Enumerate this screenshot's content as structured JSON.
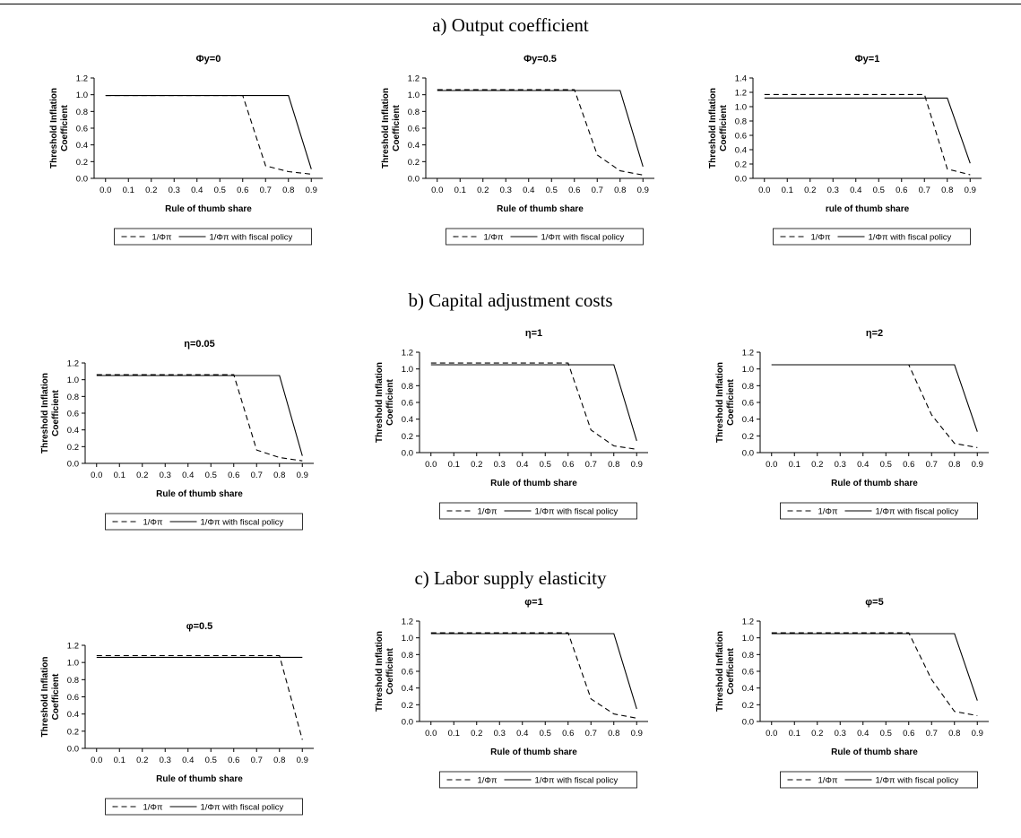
{
  "sections": [
    {
      "title": "a) Output coefficient"
    },
    {
      "title": "b) Capital adjustment costs"
    },
    {
      "title": "c) Labor supply elasticity"
    }
  ],
  "chart_data": [
    {
      "type": "line",
      "title": "Φy=0",
      "xlabel": "Rule of thumb share",
      "ylabel": "Threshold Inflation Coefficient",
      "x": [
        0.0,
        0.1,
        0.2,
        0.3,
        0.4,
        0.5,
        0.6,
        0.7,
        0.8,
        0.9
      ],
      "xticks": [
        "0.0",
        "0.1",
        "0.2",
        "0.3",
        "0.4",
        "0.5",
        "0.6",
        "0.7",
        "0.8",
        "0.9"
      ],
      "ylim": [
        0,
        1.2
      ],
      "yticks": [
        "0.0",
        "0.2",
        "0.4",
        "0.6",
        "0.8",
        "1.0",
        "1.2"
      ],
      "series": [
        {
          "name": "1/Φπ",
          "style": "dashed",
          "values": [
            0.99,
            0.99,
            0.99,
            0.99,
            0.99,
            0.99,
            0.99,
            0.15,
            0.08,
            0.05
          ]
        },
        {
          "name": "1/Φπ with fiscal policy",
          "style": "solid",
          "values": [
            0.99,
            0.99,
            0.99,
            0.99,
            0.99,
            0.99,
            0.99,
            0.99,
            0.99,
            0.11
          ]
        }
      ],
      "legend": "bottom"
    },
    {
      "type": "line",
      "title": "Φy=0.5",
      "xlabel": "Rule of thumb share",
      "ylabel": "Threshold Inflation Coefficient",
      "x": [
        0.0,
        0.1,
        0.2,
        0.3,
        0.4,
        0.5,
        0.6,
        0.7,
        0.8,
        0.9
      ],
      "xticks": [
        "0.0",
        "0.1",
        "0.2",
        "0.3",
        "0.4",
        "0.5",
        "0.6",
        "0.7",
        "0.8",
        "0.9"
      ],
      "ylim": [
        0,
        1.2
      ],
      "yticks": [
        "0.0",
        "0.2",
        "0.4",
        "0.6",
        "0.8",
        "1.0",
        "1.2"
      ],
      "series": [
        {
          "name": "1/Φπ",
          "style": "dashed",
          "values": [
            1.06,
            1.06,
            1.06,
            1.06,
            1.06,
            1.06,
            1.06,
            0.28,
            0.09,
            0.04
          ]
        },
        {
          "name": "1/Φπ with fiscal policy",
          "style": "solid",
          "values": [
            1.05,
            1.05,
            1.05,
            1.05,
            1.05,
            1.05,
            1.05,
            1.05,
            1.05,
            0.14
          ]
        }
      ],
      "legend": "bottom"
    },
    {
      "type": "line",
      "title": "Φy=1",
      "xlabel": "rule of thumb share",
      "ylabel": "Threshold Inflation Coefficient",
      "x": [
        0.0,
        0.1,
        0.2,
        0.3,
        0.4,
        0.5,
        0.6,
        0.7,
        0.8,
        0.9
      ],
      "xticks": [
        "0.0",
        "0.1",
        "0.2",
        "0.3",
        "0.4",
        "0.5",
        "0.6",
        "0.7",
        "0.8",
        "0.9"
      ],
      "ylim": [
        0,
        1.4
      ],
      "yticks": [
        "0.0",
        "0.2",
        "0.4",
        "0.6",
        "0.8",
        "1.0",
        "1.2",
        "1.4"
      ],
      "series": [
        {
          "name": "1/Φπ",
          "style": "dashed",
          "values": [
            1.17,
            1.17,
            1.17,
            1.17,
            1.17,
            1.17,
            1.17,
            1.17,
            0.13,
            0.05
          ]
        },
        {
          "name": "1/Φπ with fiscal policy",
          "style": "solid",
          "values": [
            1.12,
            1.12,
            1.12,
            1.12,
            1.12,
            1.12,
            1.12,
            1.12,
            1.12,
            0.21
          ]
        }
      ],
      "legend": "bottom"
    },
    {
      "type": "line",
      "title": "η=0.05",
      "xlabel": "Rule of thumb share",
      "ylabel": "Threshold Inflation Coefficient",
      "x": [
        0.0,
        0.1,
        0.2,
        0.3,
        0.4,
        0.5,
        0.6,
        0.7,
        0.8,
        0.9
      ],
      "xticks": [
        "0.0",
        "0.1",
        "0.2",
        "0.3",
        "0.4",
        "0.5",
        "0.6",
        "0.7",
        "0.8",
        "0.9"
      ],
      "ylim": [
        0,
        1.2
      ],
      "yticks": [
        "0.0",
        "0.2",
        "0.4",
        "0.6",
        "0.8",
        "1.0",
        "1.2"
      ],
      "series": [
        {
          "name": "1/Φπ",
          "style": "dashed",
          "values": [
            1.06,
            1.06,
            1.06,
            1.06,
            1.06,
            1.06,
            1.06,
            0.16,
            0.07,
            0.03
          ]
        },
        {
          "name": "1/Φπ with fiscal policy",
          "style": "solid",
          "values": [
            1.05,
            1.05,
            1.05,
            1.05,
            1.05,
            1.05,
            1.05,
            1.05,
            1.05,
            0.09
          ]
        }
      ],
      "legend": "bottom"
    },
    {
      "type": "line",
      "title": "η=1",
      "xlabel": "Rule of thumb share",
      "ylabel": "Threshold Inflation Coefficient",
      "x": [
        0.0,
        0.1,
        0.2,
        0.3,
        0.4,
        0.5,
        0.6,
        0.7,
        0.8,
        0.9
      ],
      "xticks": [
        "0.0",
        "0.1",
        "0.2",
        "0.3",
        "0.4",
        "0.5",
        "0.6",
        "0.7",
        "0.8",
        "0.9"
      ],
      "ylim": [
        0,
        1.2
      ],
      "yticks": [
        "0.0",
        "0.2",
        "0.4",
        "0.6",
        "0.8",
        "1.0",
        "1.2"
      ],
      "series": [
        {
          "name": "1/Φπ",
          "style": "dashed",
          "values": [
            1.07,
            1.07,
            1.07,
            1.07,
            1.07,
            1.07,
            1.07,
            0.27,
            0.08,
            0.04
          ]
        },
        {
          "name": "1/Φπ with fiscal policy",
          "style": "solid",
          "values": [
            1.05,
            1.05,
            1.05,
            1.05,
            1.05,
            1.05,
            1.05,
            1.05,
            1.05,
            0.14
          ]
        }
      ],
      "legend": "bottom"
    },
    {
      "type": "line",
      "title": "η=2",
      "xlabel": "Rule of thumb share",
      "ylabel": "Threshold Inflation Coefficient",
      "x": [
        0.0,
        0.1,
        0.2,
        0.3,
        0.4,
        0.5,
        0.6,
        0.7,
        0.8,
        0.9
      ],
      "xticks": [
        "0.0",
        "0.1",
        "0.2",
        "0.3",
        "0.4",
        "0.5",
        "0.6",
        "0.7",
        "0.8",
        "0.9"
      ],
      "ylim": [
        0,
        1.2
      ],
      "yticks": [
        "0.0",
        "0.2",
        "0.4",
        "0.6",
        "0.8",
        "1.0",
        "1.2"
      ],
      "series": [
        {
          "name": "1/Φπ",
          "style": "dashed",
          "values": [
            1.05,
            1.05,
            1.05,
            1.05,
            1.05,
            1.05,
            1.05,
            0.45,
            0.11,
            0.06
          ]
        },
        {
          "name": "1/Φπ with fiscal policy",
          "style": "solid",
          "values": [
            1.05,
            1.05,
            1.05,
            1.05,
            1.05,
            1.05,
            1.05,
            1.05,
            1.05,
            0.25
          ]
        }
      ],
      "legend": "bottom"
    },
    {
      "type": "line",
      "title": "φ=0.5",
      "xlabel": "Rule of thumb share",
      "ylabel": "Threshold Inflation Coefficient",
      "x": [
        0.0,
        0.1,
        0.2,
        0.3,
        0.4,
        0.5,
        0.6,
        0.7,
        0.8,
        0.9
      ],
      "xticks": [
        "0.0",
        "0.1",
        "0.2",
        "0.3",
        "0.4",
        "0.5",
        "0.6",
        "0.7",
        "0.8",
        "0.9"
      ],
      "ylim": [
        0,
        1.2
      ],
      "yticks": [
        "0.0",
        "0.2",
        "0.4",
        "0.6",
        "0.8",
        "1.0",
        "1.2"
      ],
      "series": [
        {
          "name": "1/Φπ",
          "style": "dashed",
          "values": [
            1.08,
            1.08,
            1.08,
            1.08,
            1.08,
            1.08,
            1.08,
            1.08,
            1.08,
            0.1
          ]
        },
        {
          "name": "1/Φπ with fiscal policy",
          "style": "solid",
          "values": [
            1.06,
            1.06,
            1.06,
            1.06,
            1.06,
            1.06,
            1.06,
            1.06,
            1.06,
            1.06
          ]
        }
      ],
      "legend": "bottom"
    },
    {
      "type": "line",
      "title": "φ=1",
      "xlabel": "Rule of thumb share",
      "ylabel": "Threshold Inflation Coefficient",
      "x": [
        0.0,
        0.1,
        0.2,
        0.3,
        0.4,
        0.5,
        0.6,
        0.7,
        0.8,
        0.9
      ],
      "xticks": [
        "0.0",
        "0.1",
        "0.2",
        "0.3",
        "0.4",
        "0.5",
        "0.6",
        "0.7",
        "0.8",
        "0.9"
      ],
      "ylim": [
        0,
        1.2
      ],
      "yticks": [
        "0.0",
        "0.2",
        "0.4",
        "0.6",
        "0.8",
        "1.0",
        "1.2"
      ],
      "series": [
        {
          "name": "1/Φπ",
          "style": "dashed",
          "values": [
            1.06,
            1.06,
            1.06,
            1.06,
            1.06,
            1.06,
            1.06,
            0.27,
            0.09,
            0.04
          ]
        },
        {
          "name": "1/Φπ with fiscal policy",
          "style": "solid",
          "values": [
            1.05,
            1.05,
            1.05,
            1.05,
            1.05,
            1.05,
            1.05,
            1.05,
            1.05,
            0.15
          ]
        }
      ],
      "legend": "bottom"
    },
    {
      "type": "line",
      "title": "φ=5",
      "xlabel": "Rule of thumb share",
      "ylabel": "Threshold Inflation Coefficient",
      "x": [
        0.0,
        0.1,
        0.2,
        0.3,
        0.4,
        0.5,
        0.6,
        0.7,
        0.8,
        0.9
      ],
      "xticks": [
        "0.0",
        "0.1",
        "0.2",
        "0.3",
        "0.4",
        "0.5",
        "0.6",
        "0.7",
        "0.8",
        "0.9"
      ],
      "ylim": [
        0,
        1.2
      ],
      "yticks": [
        "0.0",
        "0.2",
        "0.4",
        "0.6",
        "0.8",
        "1.0",
        "1.2"
      ],
      "series": [
        {
          "name": "1/Φπ",
          "style": "dashed",
          "values": [
            1.06,
            1.06,
            1.06,
            1.06,
            1.06,
            1.06,
            1.06,
            0.5,
            0.12,
            0.07
          ]
        },
        {
          "name": "1/Φπ with fiscal policy",
          "style": "solid",
          "values": [
            1.05,
            1.05,
            1.05,
            1.05,
            1.05,
            1.05,
            1.05,
            1.05,
            1.05,
            0.25
          ]
        }
      ],
      "legend": "bottom"
    }
  ]
}
